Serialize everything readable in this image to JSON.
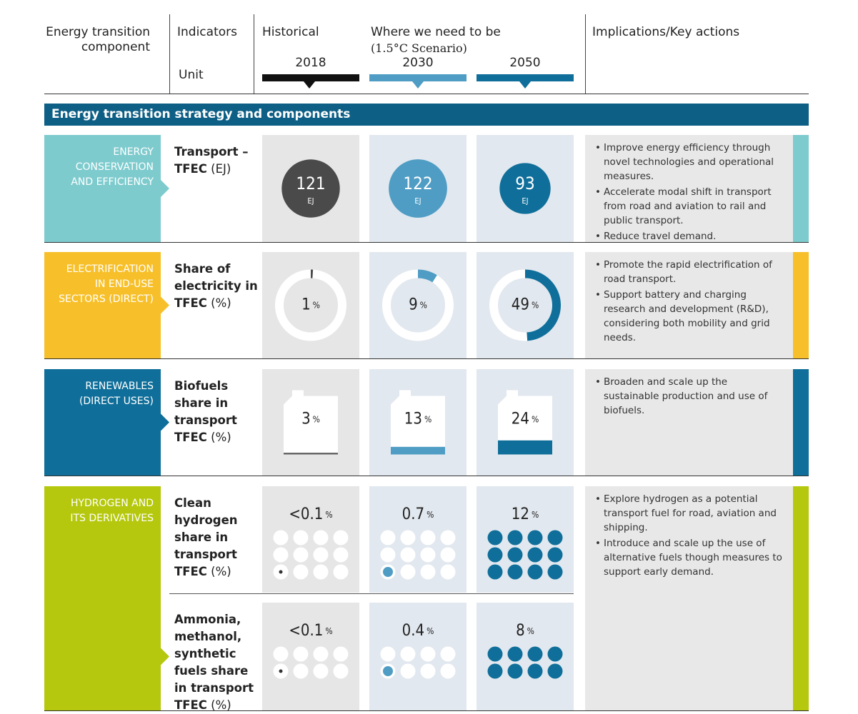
{
  "header": {
    "component": "Energy transition component",
    "indicators": "Indicators",
    "unit": "Unit",
    "historical": "Historical",
    "target": "Where we need to be",
    "scenario": "(1.5°C Scenario)",
    "years": [
      "2018",
      "2030",
      "2050"
    ],
    "implications": "Implications/Key actions"
  },
  "section_title": "Energy transition strategy and components",
  "year_colors": [
    "#4a4a4a",
    "#4f9dc4",
    "#0f6f9a"
  ],
  "rows": [
    {
      "component": "ENERGY CONSERVATION AND EFFICIENCY",
      "color": "#7ecbce",
      "indicators": [
        {
          "name": "Transport – TFEC",
          "unit": "(EJ)",
          "visual": "circle",
          "values": [
            121,
            122,
            93
          ],
          "value_unit": "EJ"
        }
      ],
      "actions": [
        "Improve energy efficiency through novel technologies and operational measures.",
        "Accelerate modal shift in transport from road and aviation to rail and public transport.",
        "Reduce travel demand."
      ]
    },
    {
      "component": "ELECTRIFICATION IN END-USE SECTORS (DIRECT)",
      "color": "#f7c02a",
      "indicators": [
        {
          "name": "Share of electricity in TFEC",
          "unit": "(%)",
          "visual": "donut",
          "values": [
            1,
            9,
            49
          ],
          "value_unit": "%"
        }
      ],
      "actions": [
        "Promote the rapid electrification of road transport.",
        "Support battery and charging research and development (R&D), considering both mobility and grid needs."
      ]
    },
    {
      "component": "RENEWABLES (DIRECT USES)",
      "color": "#0f6f9a",
      "indicators": [
        {
          "name": "Biofuels share in transport TFEC",
          "unit": "(%)",
          "visual": "bottle",
          "values": [
            3,
            13,
            24
          ],
          "value_unit": "%"
        }
      ],
      "actions": [
        "Broaden and scale up the sustainable production and use of biofuels."
      ]
    },
    {
      "component": "HYDROGEN AND ITS DERIVATIVES",
      "color": "#b5c80d",
      "indicators": [
        {
          "name": "Clean hydrogen share in transport TFEC",
          "unit": "(%)",
          "visual": "dots",
          "values": [
            "<0.1",
            0.7,
            12
          ],
          "value_unit": "%"
        },
        {
          "name": "Ammonia, methanol, synthetic fuels share in transport TFEC",
          "unit": "(%)",
          "visual": "dots",
          "values": [
            "<0.1",
            0.4,
            8
          ],
          "value_unit": "%"
        }
      ],
      "actions": [
        "Explore hydrogen as a potential transport fuel for road, aviation and shipping.",
        "Introduce and scale up the use of alternative fuels though measures to support early demand."
      ]
    }
  ]
}
